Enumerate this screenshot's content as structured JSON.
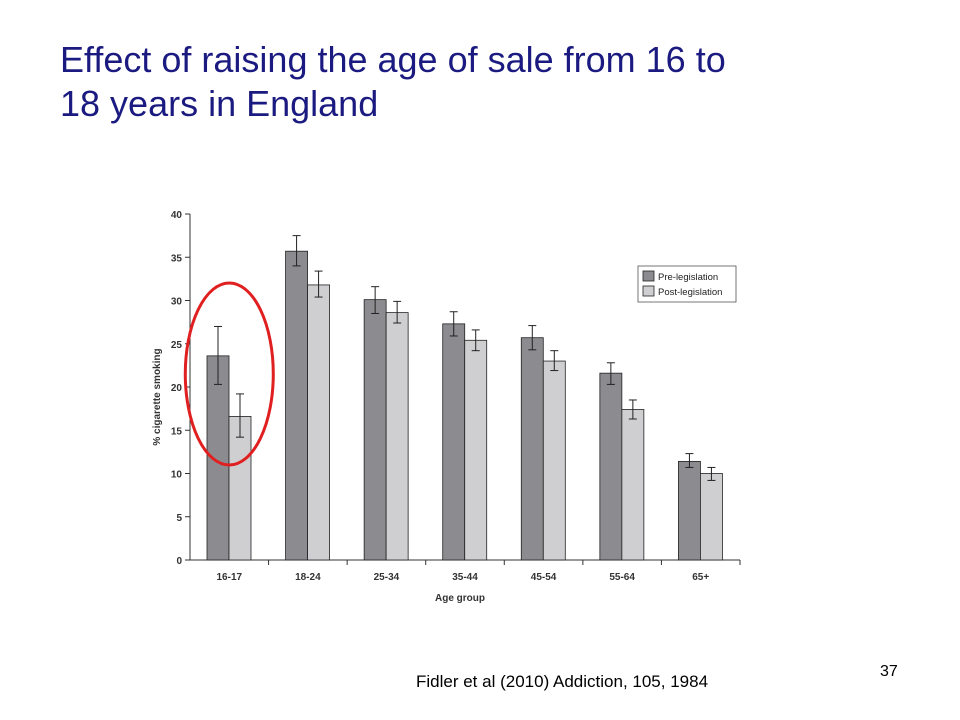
{
  "slide": {
    "title_line1": "Effect of raising the age of sale from 16 to",
    "title_line2": "18 years in England",
    "citation": "Fidler et al (2010) Addiction, 105, 1984",
    "page_number": "37"
  },
  "colors": {
    "title": "#1a1a80",
    "pre_legislation": "#8c8c90",
    "post_legislation": "#cfcfd2",
    "highlight_ellipse": "#e02020"
  },
  "chart_data": {
    "type": "bar",
    "xlabel": "Age group",
    "ylabel": "% cigarette smoking",
    "ylim": [
      0,
      40
    ],
    "yticks": [
      0,
      5,
      10,
      15,
      20,
      25,
      30,
      35,
      40
    ],
    "grid": false,
    "legend_position": "top-right",
    "categories": [
      "16-17",
      "18-24",
      "25-34",
      "35-44",
      "45-54",
      "55-64",
      "65+"
    ],
    "series": [
      {
        "name": "Pre-legislation",
        "values": [
          23.6,
          35.7,
          30.1,
          27.3,
          25.7,
          21.6,
          11.4
        ],
        "error_low": [
          20.3,
          34.0,
          28.5,
          25.9,
          24.3,
          20.3,
          10.7
        ],
        "error_high": [
          27.0,
          37.5,
          31.6,
          28.7,
          27.1,
          22.8,
          12.3
        ]
      },
      {
        "name": "Post-legislation",
        "values": [
          16.6,
          31.8,
          28.6,
          25.4,
          23.0,
          17.4,
          10.0
        ],
        "error_low": [
          14.2,
          30.4,
          27.4,
          24.2,
          21.9,
          16.3,
          9.2
        ],
        "error_high": [
          19.2,
          33.4,
          29.9,
          26.6,
          24.2,
          18.5,
          10.7
        ]
      }
    ],
    "highlight_category": "16-17"
  }
}
